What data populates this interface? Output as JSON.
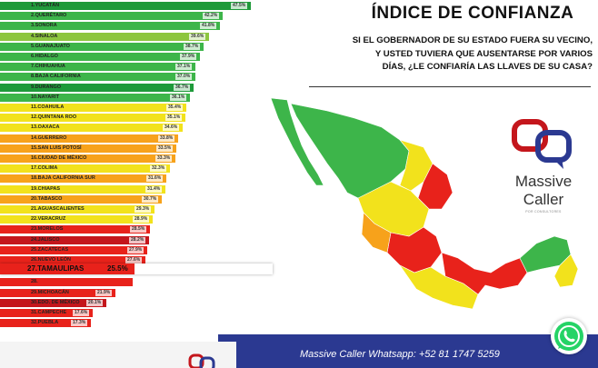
{
  "header": {
    "title": "ÍNDICE DE CONFIANZA",
    "question_lines": [
      "SI EL GOBERNADOR DE SU ESTADO FUERA SU VECINO,",
      "Y USTED TUVIERA QUE AUSENTARSE POR VARIOS",
      "DÍAS, ¿LE CONFIARÍA LAS LLAVES DE SU CASA?"
    ]
  },
  "colors": {
    "green_dark": "#1f9a3a",
    "green": "#3db54a",
    "green_light": "#8dc63f",
    "yellow": "#f2e21c",
    "orange": "#f7a21b",
    "red": "#e8221b",
    "red_dark": "#c4161c",
    "footer_blue": "#2b3991"
  },
  "chart_data": {
    "type": "bar",
    "orientation": "horizontal",
    "categories": [
      "1.YUCATÁN",
      "2.QUERÉTARO",
      "3.SONORA",
      "4.SINALOA",
      "5.GUANAJUATO",
      "6.HIDALGO",
      "7.CHIHUAHUA",
      "8.BAJA CALIFORNIA",
      "9.DURANGO",
      "10.NAYARIT",
      "11.COAHUILA",
      "12.QUINTANA ROO",
      "13.OAXACA",
      "14.GUERRERO",
      "15.SAN LUIS POTOSÍ",
      "16.CIUDAD DE MÉXICO",
      "17.COLIMA",
      "18.BAJA CALIFORNIA SUR",
      "19.CHIAPAS",
      "20.TABASCO",
      "21.AGUASCALIENTES",
      "22.VERACRUZ",
      "23.MORELOS",
      "24.JALISCO",
      "25.ZACATECAS",
      "26.NUEVO LEÓN",
      "27.TAMAULIPAS",
      "28.",
      "29.MICHOACÁN",
      "30.EDO. DE MÉXICO",
      "31.CAMPECHE",
      "32.PUEBLA"
    ],
    "values": [
      47.5,
      42.2,
      41.8,
      39.6,
      38.7,
      37.9,
      37.1,
      37.0,
      36.7,
      36.1,
      35.4,
      35.1,
      34.6,
      33.8,
      33.5,
      33.3,
      32.3,
      31.6,
      31.4,
      30.7,
      29.3,
      28.9,
      28.5,
      28.2,
      27.9,
      27.6,
      25.5,
      25.2,
      21.9,
      20.1,
      17.6,
      17.3
    ],
    "value_labels": [
      "47.5%",
      "42.2%",
      "41.8%",
      "39.6%",
      "38.7%",
      "37.9%",
      "37.1%",
      "37.0%",
      "36.7%",
      "36.1%",
      "35.4%",
      "35.1%",
      "34.6%",
      "33.8%",
      "33.5%",
      "33.3%",
      "32.3%",
      "31.6%",
      "31.4%",
      "30.7%",
      "29.3%",
      "28.9%",
      "28.5%",
      "28.2%",
      "27.9%",
      "27.6%",
      "25.5%",
      "",
      "21.9%",
      "20.1%",
      "17.6%",
      "17.3%"
    ],
    "bar_colors": [
      "#1f9a3a",
      "#3db54a",
      "#3db54a",
      "#8dc63f",
      "#3db54a",
      "#3db54a",
      "#3db54a",
      "#3db54a",
      "#1f9a3a",
      "#3db54a",
      "#f2e21c",
      "#f2e21c",
      "#f2e21c",
      "#f7a21b",
      "#f7a21b",
      "#f7a21b",
      "#f2e21c",
      "#f7a21b",
      "#f2e21c",
      "#f7a21b",
      "#f2e21c",
      "#f2e21c",
      "#e8221b",
      "#c4161c",
      "#e8221b",
      "#e8221b",
      "#e8221b",
      "#e8221b",
      "#e8221b",
      "#c4161c",
      "#e8221b",
      "#e8221b"
    ],
    "highlight": {
      "label": "27.TAMAULIPAS",
      "value_label": "25.5%",
      "value": 25.5
    },
    "title": "",
    "xlabel": "",
    "ylabel": "",
    "xlim": [
      0,
      50
    ],
    "grid": false,
    "legend": "none"
  },
  "brand": {
    "name_line1": "Massive",
    "name_line2": "Caller",
    "tagline": "POR CONSULTORES"
  },
  "footer": {
    "text": "Massive Caller Whatsapp: +52    81 1747 5259"
  },
  "icons": {
    "whatsapp": "whatsapp-icon",
    "map": "mexico-map"
  }
}
